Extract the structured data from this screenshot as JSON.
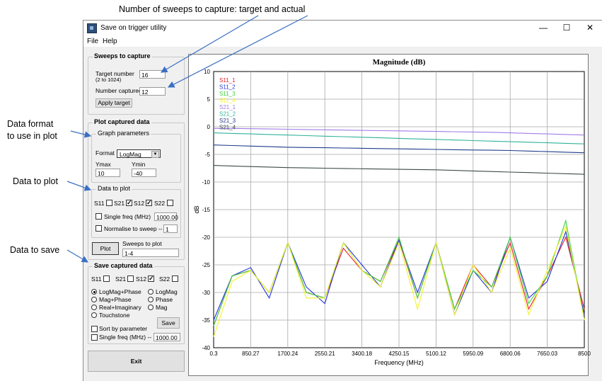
{
  "annotations": {
    "sweeps": "Number of sweeps to capture: target and actual",
    "format_line1": "Data format",
    "format_line2": "to use in plot",
    "to_plot": "Data to plot",
    "to_save": "Data to save"
  },
  "window": {
    "title": "Save on trigger utility",
    "minimize": "—",
    "maximize": "☐",
    "close": "✕"
  },
  "menu": {
    "file": "File",
    "help": "Help"
  },
  "sweeps": {
    "group_label": "Sweeps to capture",
    "target_label": "Target number",
    "target_range": "(2 to 1024)",
    "target_value": "16",
    "captured_label": "Number captured",
    "captured_value": "12",
    "apply_label": "Apply target"
  },
  "plot": {
    "group_label": "Plot captured data",
    "graph_params": {
      "label": "Graph parameters",
      "format_label": "Format",
      "format_value": "LogMag",
      "ymax_label": "Ymax",
      "ymax_value": "10",
      "ymin_label": "Ymin",
      "ymin_value": "-40"
    },
    "data_to_plot": {
      "label": "Data  to plot",
      "s11": "S11",
      "s21": "S21",
      "s12": "S12",
      "s22": "S22",
      "s11_checked": "",
      "s21_checked": "✓",
      "s12_checked": "✓",
      "s22_checked": "",
      "single_freq_label": "Single freq (MHz)",
      "single_freq_value": "1000.00",
      "normalise_label": "Normalise to sweep --",
      "normalise_value": "1"
    },
    "plot_button": "Plot",
    "sweeps_to_plot_label": "Sweeps to plot",
    "sweeps_to_plot_value": "1-4"
  },
  "save": {
    "group_label": "Save captured data",
    "s11": "S11",
    "s21": "S21",
    "s12": "S12",
    "s22": "S22",
    "s11_checked": "",
    "s21_checked": "",
    "s12_checked": "✓",
    "s22_checked": "",
    "opt_logmag_phase": "LogMag+Phase",
    "opt_mag_phase": "Mag+Phase",
    "opt_real_imag": "Real+Imaginary",
    "opt_touchstone": "Touchstone",
    "opt_logmag": "LogMag",
    "opt_phase": "Phase",
    "opt_mag": "Mag",
    "save_button": "Save",
    "sort_label": "Sort by parameter",
    "single_freq_label": "Single freq (MHz) --",
    "single_freq_value": "1000.00"
  },
  "exit_button": "Exit",
  "chart_data": {
    "type": "line",
    "title": "Magnitude (dB)",
    "xlabel": "Frequency (MHz)",
    "ylabel": "dB",
    "xlim": [
      0.3,
      8500
    ],
    "ylim": [
      -40,
      10
    ],
    "x_ticks": [
      "0.3",
      "850.27",
      "1700.24",
      "2550.21",
      "3400.18",
      "4250.15",
      "5100.12",
      "5950.09",
      "6800.06",
      "7650.03",
      "8500"
    ],
    "y_ticks": [
      10,
      5,
      0,
      -5,
      -10,
      -15,
      -20,
      -25,
      -30,
      -35,
      -40
    ],
    "grid": true,
    "legend_position": "top-left",
    "x": [
      0.3,
      425,
      850,
      1275,
      1700,
      2125,
      2550,
      2975,
      3400,
      3825,
      4250,
      4675,
      5100,
      5525,
      5950,
      6375,
      6800,
      7225,
      7650,
      8075,
      8500
    ],
    "series": [
      {
        "name": "S11_1",
        "color": "#e8212a",
        "values": [
          -36,
          -27,
          -26,
          -30,
          -21,
          -30,
          -31,
          -22,
          -26,
          -28,
          -20.5,
          -31,
          -21,
          -33,
          -25,
          -29,
          -21,
          -33,
          -27,
          -20,
          -33
        ]
      },
      {
        "name": "S11_2",
        "color": "#2636d8",
        "values": [
          -35,
          -27,
          -25.5,
          -31,
          -21,
          -29,
          -32,
          -21,
          -25,
          -29,
          -20.5,
          -30,
          -21,
          -34,
          -26,
          -30,
          -20,
          -31,
          -28,
          -19,
          -34
        ]
      },
      {
        "name": "S11_3",
        "color": "#3fd23f",
        "values": [
          -36,
          -27,
          -26,
          -30,
          -21,
          -30,
          -31,
          -21,
          -26,
          -28,
          -20,
          -31,
          -21,
          -33,
          -26,
          -29,
          -20,
          -32,
          -27,
          -17,
          -35
        ]
      },
      {
        "name": "S11_4",
        "color": "#f2f22c",
        "values": [
          -38,
          -28,
          -26,
          -30,
          -21,
          -31,
          -31,
          -21,
          -26,
          -29,
          -21,
          -33,
          -21,
          -34,
          -25,
          -30,
          -22,
          -34,
          -26,
          -18,
          -35
        ]
      },
      {
        "name": "S21_1",
        "color": "#a07ce6",
        "values": [
          -0.3,
          -0.3,
          -0.35,
          -0.4,
          -0.45,
          -0.5,
          -0.55,
          -0.6,
          -0.65,
          -0.7,
          -0.75,
          -0.8,
          -0.85,
          -0.9,
          -0.95,
          -1.0,
          -1.1,
          -1.2,
          -1.3,
          -1.4,
          -1.5
        ]
      },
      {
        "name": "S21_2",
        "color": "#2fb39a",
        "values": [
          -1.1,
          -1.2,
          -1.3,
          -1.4,
          -1.5,
          -1.6,
          -1.7,
          -1.8,
          -1.9,
          -2.0,
          -2.1,
          -2.2,
          -2.3,
          -2.4,
          -2.5,
          -2.6,
          -2.7,
          -2.8,
          -2.9,
          -3.0,
          -3.1
        ]
      },
      {
        "name": "S21_3",
        "color": "#1f3d8a",
        "values": [
          -3.3,
          -3.4,
          -3.5,
          -3.6,
          -3.7,
          -3.75,
          -3.8,
          -3.85,
          -3.9,
          -3.95,
          -4.0,
          -4.05,
          -4.1,
          -4.15,
          -4.2,
          -4.25,
          -4.3,
          -4.4,
          -4.5,
          -4.6,
          -4.7
        ]
      },
      {
        "name": "S21_4",
        "color": "#3c4a4a",
        "values": [
          -7.0,
          -7.1,
          -7.2,
          -7.3,
          -7.4,
          -7.45,
          -7.5,
          -7.55,
          -7.6,
          -7.65,
          -7.7,
          -7.75,
          -7.8,
          -7.9,
          -8.0,
          -8.1,
          -8.2,
          -8.3,
          -8.4,
          -8.5,
          -8.6
        ]
      }
    ]
  }
}
